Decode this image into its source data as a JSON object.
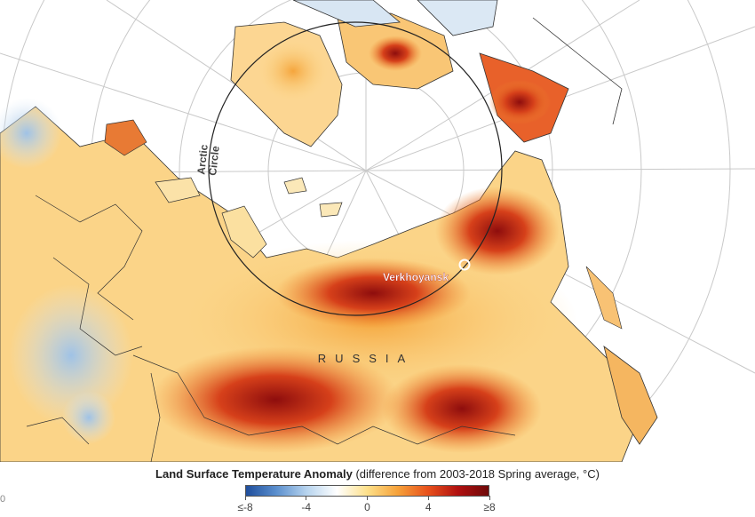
{
  "map": {
    "labels": {
      "arctic_circle": [
        "Arctic",
        "Circle"
      ],
      "country": "RUSSIA",
      "city": "Verkhoyansk"
    }
  },
  "legend": {
    "title_bold": "Land Surface Temperature Anomaly",
    "title_rest": "(difference from 2003-2018 Spring average, °C)",
    "ticks": [
      "≤-8",
      "-4",
      "0",
      "4",
      "≥8"
    ],
    "colors": [
      "#1f4e9c",
      "#5b8fce",
      "#b7d4ee",
      "#ffffff",
      "#fde08a",
      "#f6a23a",
      "#e8511c",
      "#b01010",
      "#6e0a0a"
    ]
  },
  "credit": "0"
}
